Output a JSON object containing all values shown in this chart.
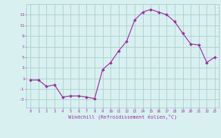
{
  "x": [
    0,
    1,
    2,
    3,
    4,
    5,
    6,
    7,
    8,
    9,
    10,
    11,
    12,
    13,
    14,
    15,
    16,
    17,
    18,
    19,
    20,
    21,
    22,
    23
  ],
  "y": [
    0.7,
    0.7,
    -0.5,
    -0.2,
    -2.5,
    -2.3,
    -2.3,
    -2.5,
    -2.8,
    2.7,
    4.0,
    6.2,
    8.0,
    12.0,
    13.5,
    14.0,
    13.5,
    13.0,
    11.7,
    9.5,
    7.5,
    7.3,
    4.0,
    5.0
  ],
  "line_color": "#9b30a0",
  "marker": "D",
  "marker_size": 2,
  "bg_color": "#d8f0f0",
  "grid_color": "#aacccc",
  "xlabel": "Windchill (Refroidissement éolien,°C)",
  "xlabel_color": "#9b30a0",
  "ylabel_ticks": [
    -3,
    -1,
    1,
    3,
    5,
    7,
    9,
    11,
    13
  ],
  "ylim": [
    -4.5,
    15
  ],
  "xlim": [
    -0.5,
    23.5
  ],
  "title": ""
}
